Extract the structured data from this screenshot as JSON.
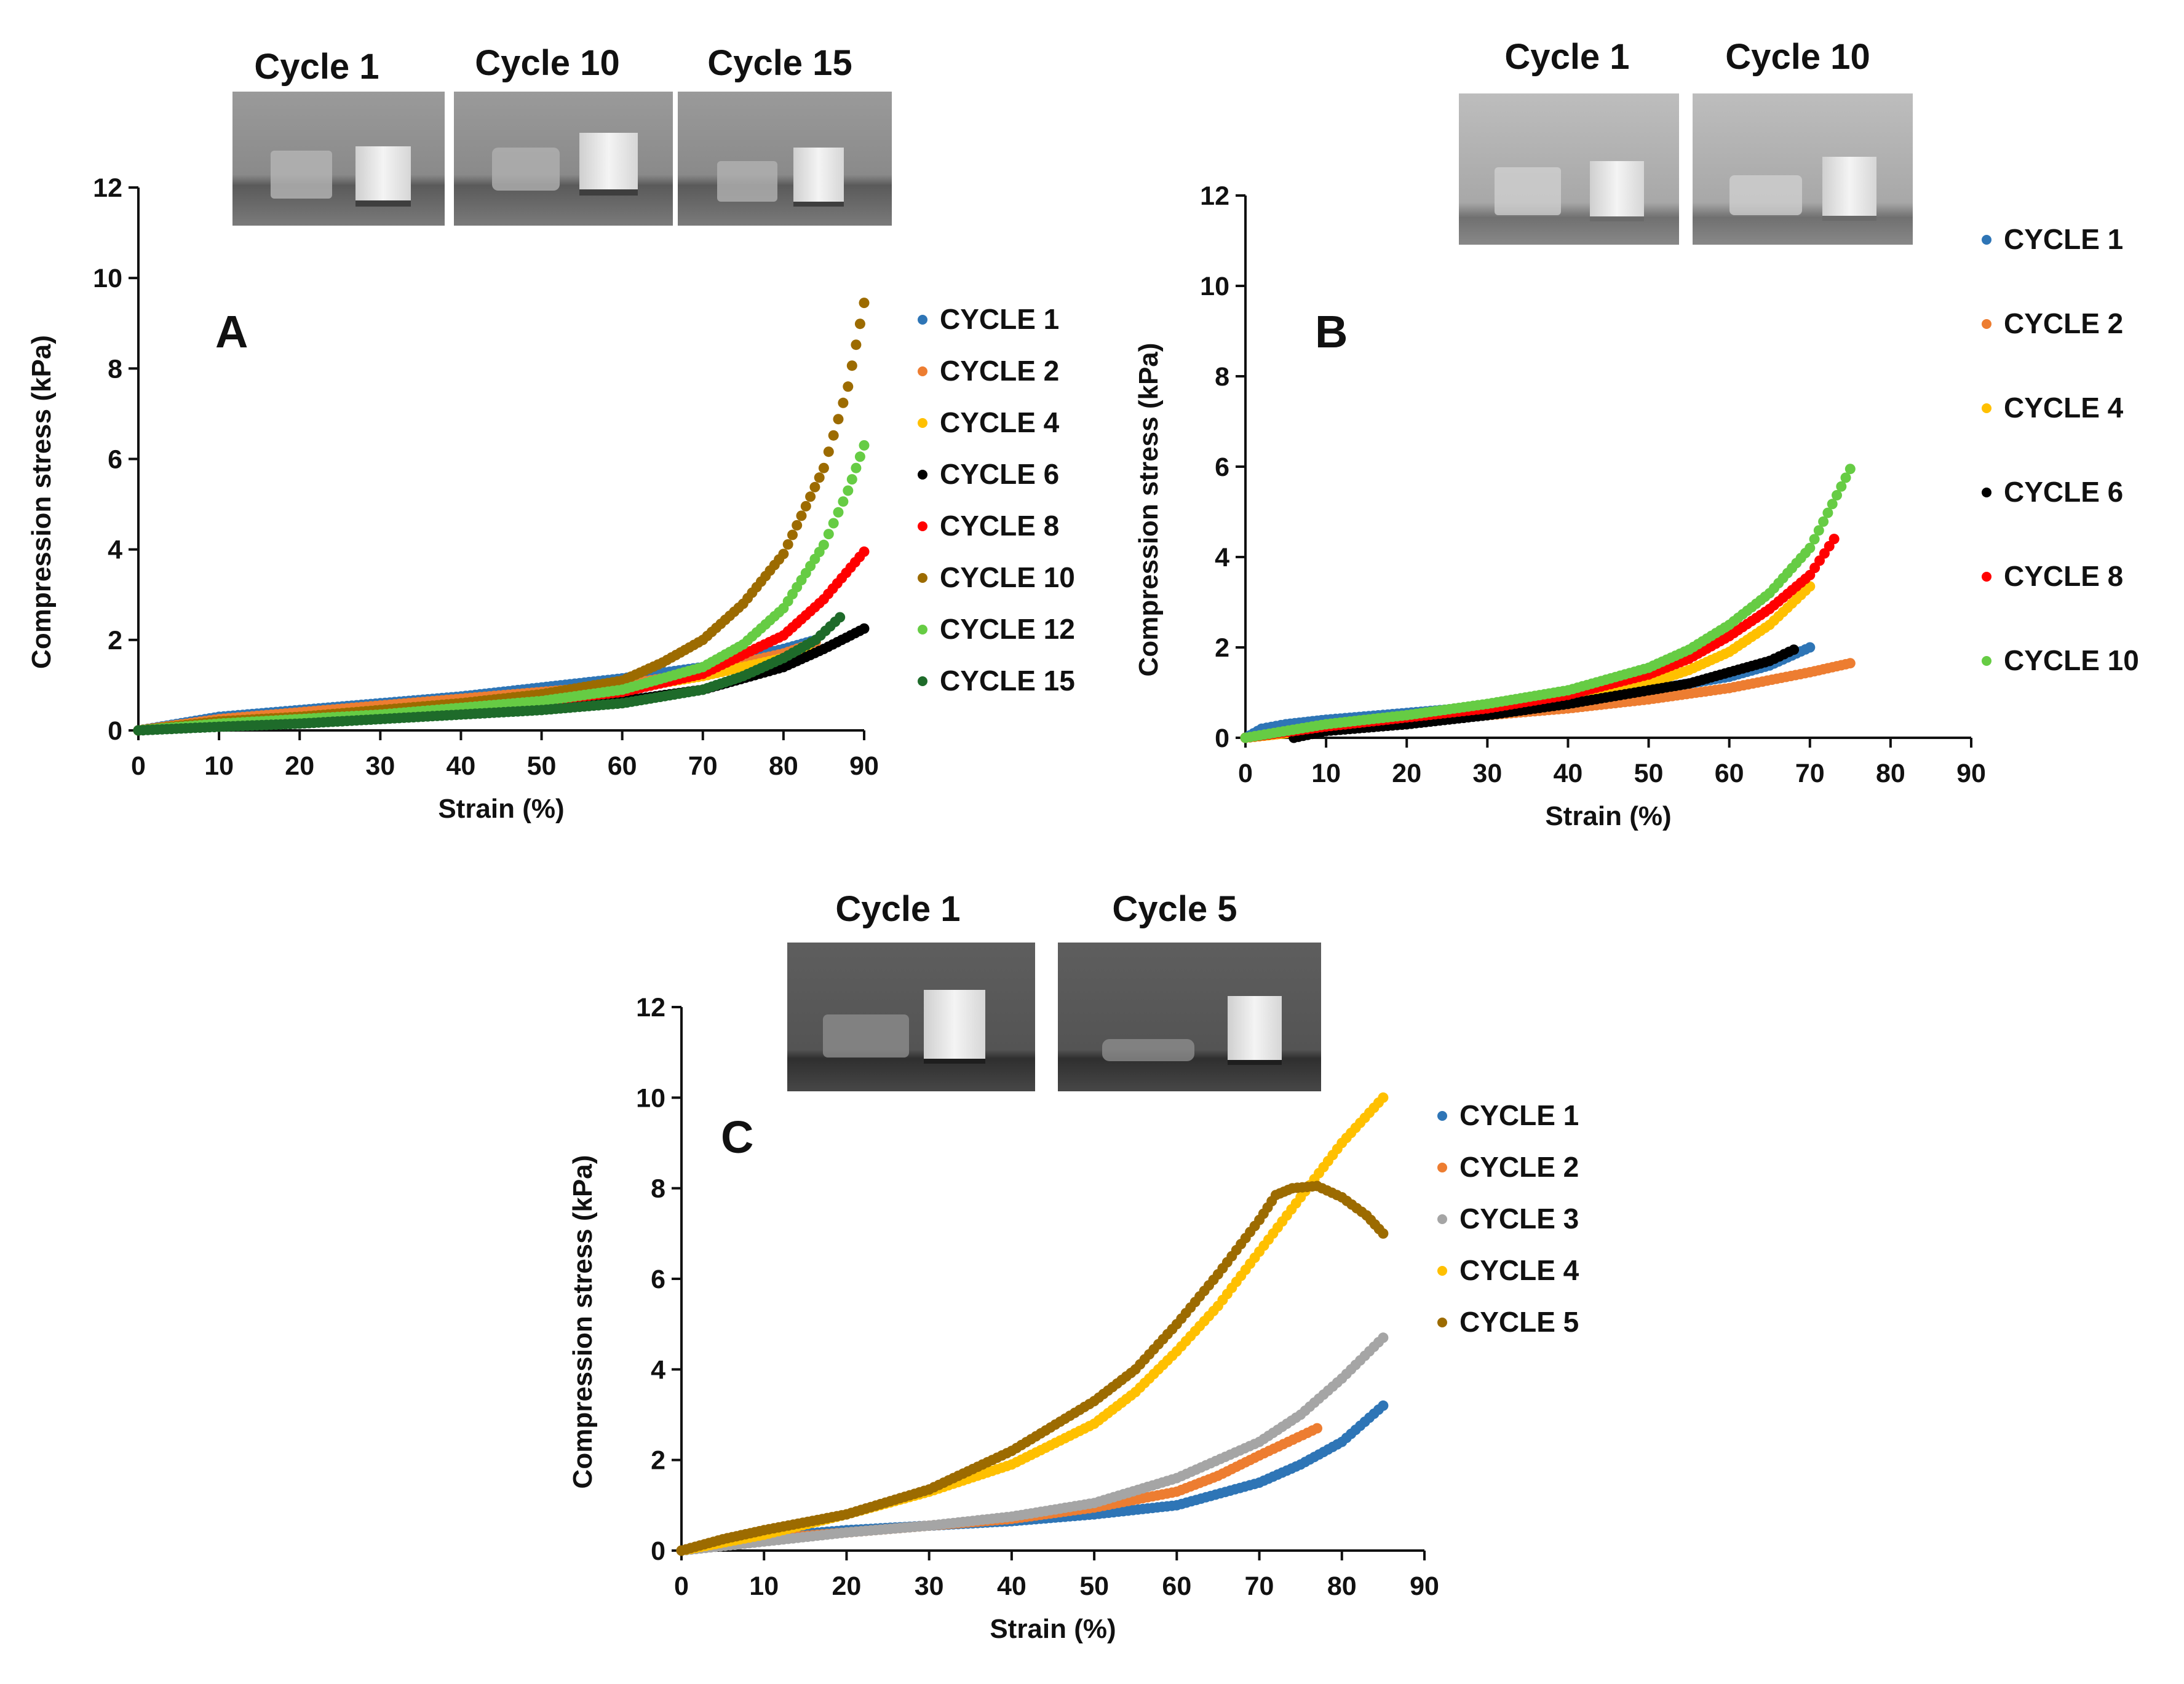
{
  "figure": {
    "panels": [
      {
        "id": "A",
        "photos": [
          "Cycle 1",
          "Cycle 10",
          "Cycle 15"
        ]
      },
      {
        "id": "B",
        "photos": [
          "Cycle 1",
          "Cycle 10"
        ]
      },
      {
        "id": "C",
        "photos": [
          "Cycle 1",
          "Cycle 5"
        ]
      }
    ]
  },
  "chart_data": [
    {
      "panel": "A",
      "type": "scatter",
      "xlabel": "Strain (%)",
      "ylabel": "Compression stress (kPa)",
      "xlim": [
        0,
        90
      ],
      "ylim": [
        0,
        12
      ],
      "xticks": [
        "0",
        "10",
        "20",
        "30",
        "40",
        "50",
        "60",
        "70",
        "80",
        "90"
      ],
      "yticks": [
        "0",
        "2",
        "4",
        "6",
        "8",
        "10",
        "12"
      ],
      "legend_position": "right",
      "series": [
        {
          "name": "CYCLE 1",
          "color": "#2E75B6",
          "points": [
            [
              0,
              0
            ],
            [
              10,
              0.3
            ],
            [
              20,
              0.45
            ],
            [
              30,
              0.6
            ],
            [
              40,
              0.75
            ],
            [
              50,
              0.95
            ],
            [
              60,
              1.15
            ],
            [
              70,
              1.4
            ],
            [
              80,
              1.8
            ],
            [
              84,
              2.0
            ]
          ]
        },
        {
          "name": "CYCLE 2",
          "color": "#ED7D31",
          "points": [
            [
              0,
              0
            ],
            [
              10,
              0.25
            ],
            [
              20,
              0.4
            ],
            [
              30,
              0.55
            ],
            [
              40,
              0.7
            ],
            [
              50,
              0.85
            ],
            [
              60,
              1.0
            ],
            [
              70,
              1.3
            ],
            [
              80,
              1.7
            ],
            [
              84,
              1.95
            ]
          ]
        },
        {
          "name": "CYCLE 4",
          "color": "#FFC000",
          "points": [
            [
              0,
              0
            ],
            [
              10,
              0.2
            ],
            [
              20,
              0.3
            ],
            [
              30,
              0.45
            ],
            [
              40,
              0.55
            ],
            [
              50,
              0.7
            ],
            [
              60,
              0.9
            ],
            [
              70,
              1.2
            ],
            [
              80,
              1.6
            ],
            [
              83,
              1.8
            ]
          ]
        },
        {
          "name": "CYCLE 6",
          "color": "#000000",
          "points": [
            [
              0,
              0
            ],
            [
              10,
              0.1
            ],
            [
              20,
              0.2
            ],
            [
              30,
              0.3
            ],
            [
              40,
              0.4
            ],
            [
              50,
              0.5
            ],
            [
              60,
              0.65
            ],
            [
              70,
              0.9
            ],
            [
              80,
              1.4
            ],
            [
              85,
              1.8
            ],
            [
              90,
              2.25
            ]
          ]
        },
        {
          "name": "CYCLE 8",
          "color": "#FF0000",
          "points": [
            [
              0,
              0
            ],
            [
              10,
              0.15
            ],
            [
              20,
              0.25
            ],
            [
              30,
              0.35
            ],
            [
              40,
              0.5
            ],
            [
              50,
              0.65
            ],
            [
              60,
              0.85
            ],
            [
              70,
              1.25
            ],
            [
              80,
              2.1
            ],
            [
              85,
              2.9
            ],
            [
              90,
              3.95
            ]
          ]
        },
        {
          "name": "CYCLE 10",
          "color": "#9C6B00",
          "points": [
            [
              0,
              0
            ],
            [
              10,
              0.2
            ],
            [
              20,
              0.3
            ],
            [
              30,
              0.45
            ],
            [
              40,
              0.6
            ],
            [
              50,
              0.8
            ],
            [
              60,
              1.1
            ],
            [
              65,
              1.5
            ],
            [
              70,
              2.0
            ],
            [
              75,
              2.8
            ],
            [
              80,
              3.9
            ],
            [
              85,
              5.8
            ],
            [
              88,
              7.6
            ],
            [
              90,
              9.45
            ]
          ]
        },
        {
          "name": "CYCLE 12",
          "color": "#66CC44",
          "points": [
            [
              0,
              0
            ],
            [
              10,
              0.15
            ],
            [
              20,
              0.25
            ],
            [
              30,
              0.35
            ],
            [
              40,
              0.5
            ],
            [
              50,
              0.65
            ],
            [
              60,
              0.9
            ],
            [
              70,
              1.4
            ],
            [
              75,
              1.9
            ],
            [
              80,
              2.7
            ],
            [
              85,
              4.1
            ],
            [
              88,
              5.3
            ],
            [
              90,
              6.3
            ]
          ]
        },
        {
          "name": "CYCLE 15",
          "color": "#1E6B2A",
          "points": [
            [
              0,
              0
            ],
            [
              10,
              0.08
            ],
            [
              20,
              0.15
            ],
            [
              30,
              0.25
            ],
            [
              40,
              0.35
            ],
            [
              50,
              0.45
            ],
            [
              60,
              0.6
            ],
            [
              70,
              0.9
            ],
            [
              75,
              1.2
            ],
            [
              80,
              1.6
            ],
            [
              84,
              2.0
            ],
            [
              87,
              2.5
            ]
          ]
        }
      ]
    },
    {
      "panel": "B",
      "type": "scatter",
      "xlabel": "Strain (%)",
      "ylabel": "Compression stress (kPa)",
      "xlim": [
        0,
        90
      ],
      "ylim": [
        0,
        12
      ],
      "xticks": [
        "0",
        "10",
        "20",
        "30",
        "40",
        "50",
        "60",
        "70",
        "80",
        "90"
      ],
      "yticks": [
        "0",
        "2",
        "4",
        "6",
        "8",
        "10",
        "12"
      ],
      "legend_position": "right",
      "series": [
        {
          "name": "CYCLE 1",
          "color": "#2E75B6",
          "points": [
            [
              0,
              0
            ],
            [
              2,
              0.2
            ],
            [
              5,
              0.3
            ],
            [
              10,
              0.4
            ],
            [
              20,
              0.55
            ],
            [
              30,
              0.7
            ],
            [
              40,
              0.85
            ],
            [
              50,
              1.05
            ],
            [
              60,
              1.35
            ],
            [
              65,
              1.6
            ],
            [
              70,
              2.0
            ]
          ]
        },
        {
          "name": "CYCLE 2",
          "color": "#ED7D31",
          "points": [
            [
              0,
              0
            ],
            [
              5,
              0.1
            ],
            [
              10,
              0.2
            ],
            [
              20,
              0.35
            ],
            [
              30,
              0.5
            ],
            [
              40,
              0.65
            ],
            [
              50,
              0.85
            ],
            [
              60,
              1.1
            ],
            [
              70,
              1.45
            ],
            [
              75,
              1.65
            ]
          ]
        },
        {
          "name": "CYCLE 4",
          "color": "#FFC000",
          "points": [
            [
              0,
              0
            ],
            [
              10,
              0.2
            ],
            [
              20,
              0.35
            ],
            [
              30,
              0.55
            ],
            [
              40,
              0.8
            ],
            [
              50,
              1.2
            ],
            [
              55,
              1.5
            ],
            [
              60,
              1.9
            ],
            [
              65,
              2.5
            ],
            [
              70,
              3.35
            ]
          ]
        },
        {
          "name": "CYCLE 6",
          "color": "#000000",
          "points": [
            [
              6,
              0
            ],
            [
              10,
              0.15
            ],
            [
              20,
              0.3
            ],
            [
              30,
              0.5
            ],
            [
              40,
              0.75
            ],
            [
              50,
              1.05
            ],
            [
              55,
              1.2
            ],
            [
              60,
              1.45
            ],
            [
              65,
              1.7
            ],
            [
              68,
              1.95
            ]
          ]
        },
        {
          "name": "CYCLE 8",
          "color": "#FF0000",
          "points": [
            [
              0,
              0
            ],
            [
              10,
              0.25
            ],
            [
              20,
              0.45
            ],
            [
              30,
              0.65
            ],
            [
              40,
              0.95
            ],
            [
              50,
              1.4
            ],
            [
              55,
              1.75
            ],
            [
              60,
              2.25
            ],
            [
              65,
              2.85
            ],
            [
              70,
              3.6
            ],
            [
              73,
              4.4
            ]
          ]
        },
        {
          "name": "CYCLE 10",
          "color": "#66CC44",
          "points": [
            [
              0,
              0
            ],
            [
              10,
              0.3
            ],
            [
              20,
              0.5
            ],
            [
              30,
              0.75
            ],
            [
              40,
              1.05
            ],
            [
              50,
              1.55
            ],
            [
              55,
              1.95
            ],
            [
              60,
              2.5
            ],
            [
              65,
              3.2
            ],
            [
              70,
              4.2
            ],
            [
              75,
              5.95
            ]
          ]
        }
      ]
    },
    {
      "panel": "C",
      "type": "scatter",
      "xlabel": "Strain (%)",
      "ylabel": "Compression stress (kPa)",
      "xlim": [
        0,
        90
      ],
      "ylim": [
        0,
        12
      ],
      "xticks": [
        "0",
        "10",
        "20",
        "30",
        "40",
        "50",
        "60",
        "70",
        "80",
        "90"
      ],
      "yticks": [
        "0",
        "2",
        "4",
        "6",
        "8",
        "10",
        "12"
      ],
      "legend_position": "right",
      "series": [
        {
          "name": "CYCLE 1",
          "color": "#2E75B6",
          "points": [
            [
              0,
              0
            ],
            [
              10,
              0.3
            ],
            [
              20,
              0.45
            ],
            [
              30,
              0.55
            ],
            [
              40,
              0.65
            ],
            [
              50,
              0.8
            ],
            [
              60,
              1.0
            ],
            [
              70,
              1.5
            ],
            [
              75,
              1.9
            ],
            [
              80,
              2.4
            ],
            [
              85,
              3.2
            ]
          ]
        },
        {
          "name": "CYCLE 2",
          "color": "#ED7D31",
          "points": [
            [
              0,
              0
            ],
            [
              10,
              0.25
            ],
            [
              20,
              0.4
            ],
            [
              30,
              0.55
            ],
            [
              40,
              0.7
            ],
            [
              50,
              0.95
            ],
            [
              60,
              1.3
            ],
            [
              65,
              1.65
            ],
            [
              70,
              2.1
            ],
            [
              77,
              2.7
            ]
          ]
        },
        {
          "name": "CYCLE 3",
          "color": "#A5A5A5",
          "points": [
            [
              0,
              0
            ],
            [
              10,
              0.2
            ],
            [
              20,
              0.4
            ],
            [
              30,
              0.55
            ],
            [
              40,
              0.75
            ],
            [
              50,
              1.05
            ],
            [
              60,
              1.6
            ],
            [
              70,
              2.4
            ],
            [
              75,
              3.0
            ],
            [
              80,
              3.8
            ],
            [
              85,
              4.7
            ]
          ]
        },
        {
          "name": "CYCLE 4",
          "color": "#FFC000",
          "points": [
            [
              0,
              0
            ],
            [
              10,
              0.35
            ],
            [
              20,
              0.8
            ],
            [
              30,
              1.3
            ],
            [
              40,
              1.9
            ],
            [
              50,
              2.8
            ],
            [
              55,
              3.5
            ],
            [
              60,
              4.4
            ],
            [
              65,
              5.4
            ],
            [
              70,
              6.6
            ],
            [
              75,
              7.8
            ],
            [
              80,
              9.0
            ],
            [
              85,
              10.0
            ]
          ]
        },
        {
          "name": "CYCLE 5",
          "color": "#9C6B00",
          "points": [
            [
              0,
              0
            ],
            [
              5,
              0.25
            ],
            [
              10,
              0.45
            ],
            [
              20,
              0.8
            ],
            [
              30,
              1.35
            ],
            [
              40,
              2.2
            ],
            [
              50,
              3.3
            ],
            [
              55,
              4.0
            ],
            [
              60,
              5.0
            ],
            [
              65,
              6.1
            ],
            [
              70,
              7.3
            ],
            [
              72,
              7.85
            ],
            [
              74,
              8.0
            ],
            [
              77,
              8.05
            ],
            [
              80,
              7.8
            ],
            [
              83,
              7.4
            ],
            [
              85,
              7.0
            ]
          ]
        }
      ]
    }
  ]
}
